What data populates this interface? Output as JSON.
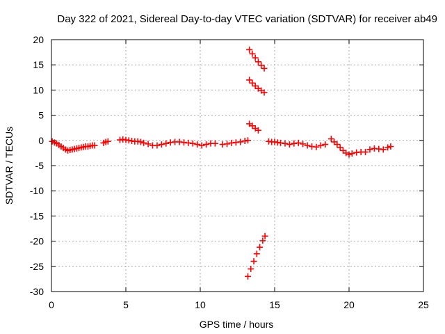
{
  "chart_data": {
    "type": "scatter",
    "title": "Day 322 of 2021, Sidereal Day-to-day VTEC variation (SDTVAR) for receiver ab49",
    "xlabel": "GPS time / hours",
    "ylabel": "SDTVAR / TECUs",
    "xlim": [
      0,
      25
    ],
    "ylim": [
      -30,
      20
    ],
    "xticks": [
      "0",
      "5",
      "10",
      "15",
      "20",
      "25"
    ],
    "yticks": [
      "20",
      "15",
      "10",
      "5",
      "0",
      "-5",
      "-10",
      "-15",
      "-20",
      "-25",
      "-30"
    ],
    "grid": true,
    "marker": "plus",
    "color": "#ff0000",
    "series": [
      {
        "segments": [
          {
            "x": [
              0.05,
              0.2,
              0.35,
              0.5,
              0.65,
              0.8,
              0.95,
              1.1,
              1.25,
              1.4,
              1.55,
              1.7,
              1.85,
              2.0,
              2.15,
              2.3,
              2.45,
              2.6,
              2.75,
              2.9
            ],
            "y": [
              -0.2,
              -0.4,
              -0.6,
              -0.9,
              -1.2,
              -1.5,
              -1.8,
              -2.0,
              -1.9,
              -1.8,
              -1.7,
              -1.6,
              -1.5,
              -1.4,
              -1.3,
              -1.2,
              -1.2,
              -1.1,
              -1.0,
              -1.0
            ]
          },
          {
            "x": [
              3.5,
              3.65,
              3.8
            ],
            "y": [
              -0.5,
              -0.3,
              -0.2
            ]
          },
          {
            "x": [
              4.6,
              4.8,
              5.0,
              5.2,
              5.4,
              5.6,
              5.8,
              6.0,
              6.2,
              6.5,
              6.8,
              7.1,
              7.4,
              7.7,
              8.0,
              8.3,
              8.6,
              8.9,
              9.2,
              9.5,
              9.8,
              10.1,
              10.4,
              10.7,
              11.0
            ],
            "y": [
              0.1,
              0.2,
              0.1,
              0.0,
              -0.1,
              -0.2,
              -0.2,
              -0.3,
              -0.5,
              -0.7,
              -1.0,
              -1.0,
              -0.8,
              -0.6,
              -0.4,
              -0.3,
              -0.3,
              -0.4,
              -0.5,
              -0.6,
              -0.8,
              -1.0,
              -0.8,
              -0.6,
              -0.6
            ]
          },
          {
            "x": [
              11.5,
              11.8,
              12.1,
              12.4,
              12.7,
              13.0,
              13.2
            ],
            "y": [
              -0.8,
              -0.7,
              -0.5,
              -0.4,
              -0.3,
              -0.1,
              0.0
            ]
          },
          {
            "x": [
              13.3,
              13.5,
              13.7,
              13.9,
              14.1,
              14.3
            ],
            "y": [
              18.0,
              17.2,
              16.4,
              15.6,
              14.9,
              14.3
            ]
          },
          {
            "x": [
              13.3,
              13.5,
              13.7,
              13.9,
              14.1,
              14.3
            ],
            "y": [
              12.0,
              11.4,
              10.8,
              10.3,
              9.9,
              9.5
            ]
          },
          {
            "x": [
              13.3,
              13.5,
              13.7,
              13.9
            ],
            "y": [
              3.3,
              2.9,
              2.4,
              2.0
            ]
          },
          {
            "x": [
              13.2,
              13.4,
              13.6,
              13.8,
              14.0,
              14.2,
              14.35
            ],
            "y": [
              -27.0,
              -25.5,
              -24.0,
              -22.5,
              -21.2,
              -19.9,
              -19.0
            ]
          },
          {
            "x": [
              14.6,
              14.8,
              15.0,
              15.2,
              15.4,
              15.7,
              16.0,
              16.3,
              16.6,
              16.9,
              17.2,
              17.5,
              17.8,
              18.1,
              18.4
            ],
            "y": [
              -0.2,
              -0.3,
              -0.3,
              -0.4,
              -0.5,
              -0.6,
              -0.8,
              -0.6,
              -0.5,
              -0.7,
              -1.0,
              -1.2,
              -1.3,
              -1.0,
              -0.8
            ]
          },
          {
            "x": [
              18.8,
              19.0,
              19.2,
              19.4,
              19.6,
              19.8,
              20.0,
              20.2,
              20.5,
              20.8,
              21.1,
              21.4,
              21.7,
              22.0,
              22.3,
              22.6,
              22.8
            ],
            "y": [
              0.3,
              -0.3,
              -0.8,
              -1.4,
              -2.0,
              -2.5,
              -2.8,
              -2.6,
              -2.4,
              -2.3,
              -2.3,
              -1.8,
              -1.6,
              -1.7,
              -1.8,
              -1.4,
              -1.2
            ]
          }
        ]
      }
    ]
  }
}
